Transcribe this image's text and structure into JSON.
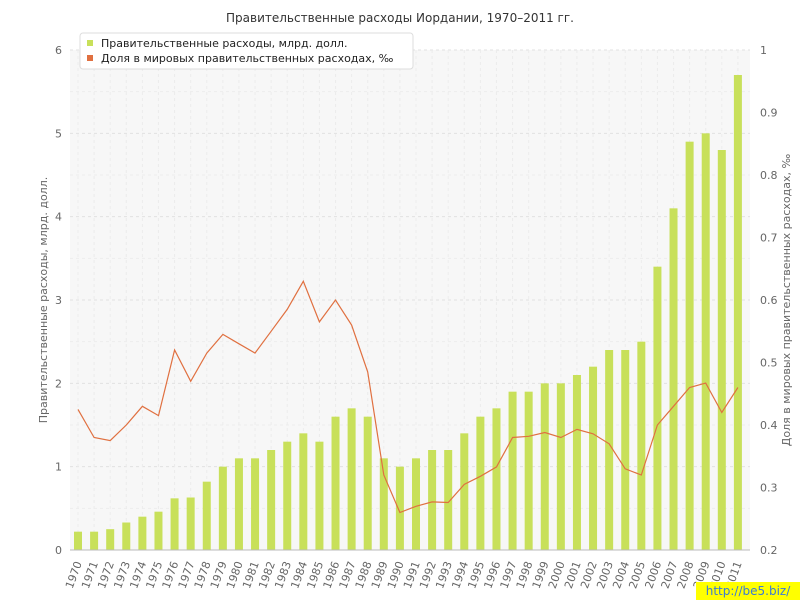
{
  "chart_data": {
    "type": "bar",
    "title": "Правительственные расходы Иордании, 1970–2011 гг.",
    "categories": [
      "1970",
      "1971",
      "1972",
      "1973",
      "1974",
      "1975",
      "1976",
      "1977",
      "1978",
      "1979",
      "1980",
      "1981",
      "1982",
      "1983",
      "1984",
      "1985",
      "1986",
      "1987",
      "1988",
      "1989",
      "1990",
      "1991",
      "1992",
      "1993",
      "1994",
      "1995",
      "1996",
      "1997",
      "1998",
      "1999",
      "2000",
      "2001",
      "2002",
      "2003",
      "2004",
      "2005",
      "2006",
      "2007",
      "2008",
      "2009",
      "2010",
      "2011"
    ],
    "series": [
      {
        "name": "Правительственные расходы, млрд. долл.",
        "type": "bar",
        "axis": "left",
        "color": "#c8e05a",
        "values": [
          0.22,
          0.22,
          0.25,
          0.33,
          0.4,
          0.46,
          0.62,
          0.63,
          0.82,
          1.0,
          1.1,
          1.1,
          1.2,
          1.3,
          1.4,
          1.3,
          1.6,
          1.7,
          1.6,
          1.1,
          1.0,
          1.1,
          1.2,
          1.2,
          1.4,
          1.6,
          1.7,
          1.9,
          1.9,
          2.0,
          2.0,
          2.1,
          2.2,
          2.4,
          2.4,
          2.5,
          3.4,
          4.1,
          4.9,
          5.0,
          4.8,
          5.7
        ]
      },
      {
        "name": "Доля в мировых правительственных расходах, ‰",
        "type": "line",
        "axis": "right",
        "color": "#e07040",
        "values": [
          0.425,
          0.38,
          0.375,
          0.4,
          0.43,
          0.415,
          0.52,
          0.47,
          0.515,
          0.545,
          0.53,
          0.515,
          0.55,
          0.585,
          0.63,
          0.565,
          0.6,
          0.56,
          0.485,
          0.32,
          0.26,
          0.27,
          0.277,
          0.276,
          0.305,
          0.318,
          0.333,
          0.38,
          0.382,
          0.388,
          0.38,
          0.393,
          0.386,
          0.37,
          0.33,
          0.32,
          0.4,
          0.43,
          0.46,
          0.467,
          0.42,
          0.46
        ]
      }
    ],
    "ylabel": "Правительственные расходы, млрд. долл.",
    "ylabel_right": "Доля в мировых правительственных расходах, ‰",
    "ylim": [
      0,
      6
    ],
    "ylim_right": [
      0.2,
      1.0
    ],
    "yticks": [
      "0",
      "1",
      "2",
      "3",
      "4",
      "5",
      "6"
    ],
    "yticks_right": [
      "0.2",
      "0.3",
      "0.4",
      "0.5",
      "0.6",
      "0.7",
      "0.8",
      "0.9",
      "1"
    ],
    "grid": true,
    "legend_position": "top-left"
  },
  "watermark": "http://be5.biz/"
}
